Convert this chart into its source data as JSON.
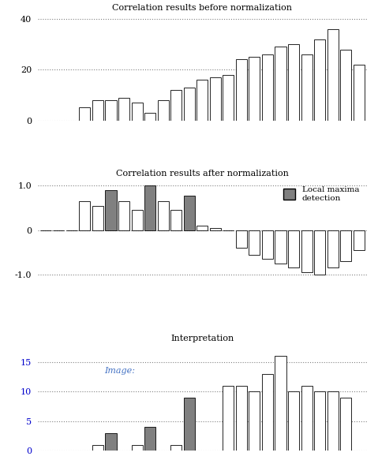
{
  "title1": "Correlation results before normalization",
  "title2": "Correlation results after normalization",
  "title3": "Interpretation",
  "bars1": [
    0,
    0,
    0,
    5,
    8,
    8,
    9,
    7,
    3,
    8,
    12,
    13,
    16,
    17,
    18,
    24,
    25,
    26,
    29,
    30,
    26,
    32,
    36,
    28,
    22
  ],
  "bars2_values": [
    0,
    0,
    0,
    0.65,
    0.55,
    0.9,
    0.65,
    0.45,
    1.0,
    0.65,
    0.45,
    0.78,
    0.1,
    0.05,
    0,
    -0.4,
    -0.55,
    -0.65,
    -0.75,
    -0.85,
    -0.95,
    -1.0,
    -0.85,
    -0.7,
    -0.45
  ],
  "bars2_gray": [
    false,
    false,
    false,
    false,
    false,
    true,
    false,
    false,
    true,
    false,
    false,
    true,
    false,
    false,
    false,
    false,
    false,
    false,
    false,
    false,
    false,
    false,
    false,
    false,
    false
  ],
  "bars3_values": [
    0,
    0,
    0,
    0,
    1,
    3,
    0,
    1,
    4,
    0,
    1,
    9,
    0,
    0,
    11,
    11,
    10,
    13,
    16,
    10,
    11,
    10,
    10,
    9,
    0
  ],
  "bars3_gray": [
    false,
    false,
    false,
    false,
    false,
    true,
    false,
    false,
    true,
    false,
    false,
    true,
    false,
    false,
    false,
    false,
    false,
    false,
    false,
    false,
    false,
    false,
    false,
    false,
    false
  ],
  "bar_color_white": "#ffffff",
  "bar_color_gray": "#808080",
  "bar_edge_color": "#000000",
  "title_color": "#000000",
  "ytick3_color": "#0000cc",
  "yticks1": [
    0,
    20,
    40
  ],
  "yticks2": [
    -1.0,
    0,
    1.0
  ],
  "yticks3": [
    0,
    5,
    10,
    15
  ],
  "legend_label": "Local maxima\ndetection",
  "image_label": "Image:",
  "image_label_color": "#4472c4",
  "background_color": "#ffffff",
  "dotted_color": "#808080"
}
